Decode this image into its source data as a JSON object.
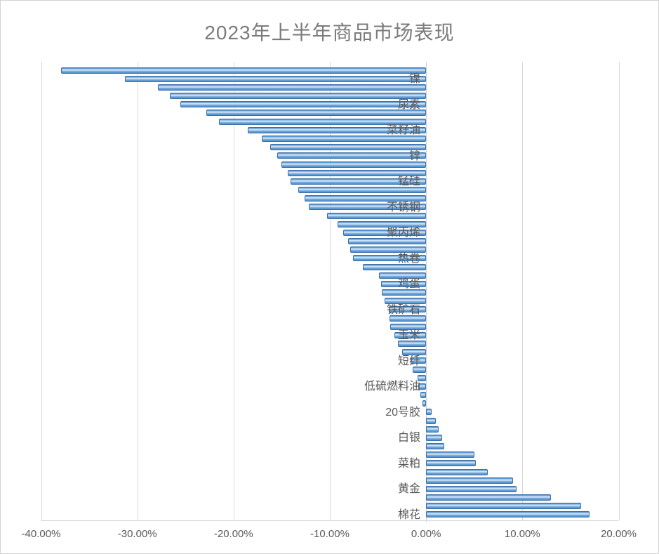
{
  "window": {
    "background_color": "#ffffff",
    "border_color": "#d4d4d4"
  },
  "colors": {
    "bar_fill": "#5b9bd5",
    "bar_border": "#3c6ea6",
    "bar_highlight": "#d6e6f6",
    "gridline": "#d9d9d9",
    "axis_text": "#595959",
    "title_text": "#7b7b7b"
  },
  "chart_data": {
    "type": "bar",
    "orientation": "horizontal",
    "title": "2023年上半年商品市场表现",
    "xlabel": "",
    "ylabel": "",
    "xlim": [
      -40,
      20
    ],
    "grid": true,
    "legend": false,
    "value_unit": "%",
    "x_ticks": [
      {
        "value": -40,
        "label": "-40.00%"
      },
      {
        "value": -30,
        "label": "-30.00%"
      },
      {
        "value": -20,
        "label": "-20.00%"
      },
      {
        "value": -10,
        "label": "-10.00%"
      },
      {
        "value": 0,
        "label": "0.00%"
      },
      {
        "value": 10,
        "label": "10.00%"
      },
      {
        "value": 20,
        "label": "20.00%"
      }
    ],
    "label_note": "category labels shown only on every third bar",
    "bars": [
      {
        "label": "",
        "value": -37.9
      },
      {
        "label": "镍",
        "value": -31.3
      },
      {
        "label": "",
        "value": -27.9
      },
      {
        "label": "",
        "value": -26.6
      },
      {
        "label": "尿素",
        "value": -25.5
      },
      {
        "label": "",
        "value": -22.8
      },
      {
        "label": "",
        "value": -21.5
      },
      {
        "label": "菜籽油",
        "value": -18.5
      },
      {
        "label": "",
        "value": -17.1
      },
      {
        "label": "",
        "value": -16.2
      },
      {
        "label": "锌",
        "value": -15.5
      },
      {
        "label": "",
        "value": -15.0
      },
      {
        "label": "",
        "value": -14.4
      },
      {
        "label": "锰硅",
        "value": -14.1
      },
      {
        "label": "",
        "value": -13.3
      },
      {
        "label": "",
        "value": -12.6
      },
      {
        "label": "不锈钢",
        "value": -12.2
      },
      {
        "label": "",
        "value": -10.3
      },
      {
        "label": "",
        "value": -9.2
      },
      {
        "label": "聚丙烯",
        "value": -8.6
      },
      {
        "label": "",
        "value": -8.1
      },
      {
        "label": "",
        "value": -7.9
      },
      {
        "label": "热卷",
        "value": -7.6
      },
      {
        "label": "",
        "value": -6.6
      },
      {
        "label": "",
        "value": -4.9
      },
      {
        "label": "鸡蛋",
        "value": -4.7
      },
      {
        "label": "",
        "value": -4.6
      },
      {
        "label": "",
        "value": -4.3
      },
      {
        "label": "铁矿石",
        "value": -3.9
      },
      {
        "label": "",
        "value": -3.8
      },
      {
        "label": "",
        "value": -3.7
      },
      {
        "label": "玉米",
        "value": -3.3
      },
      {
        "label": "",
        "value": -2.9
      },
      {
        "label": "",
        "value": -2.5
      },
      {
        "label": "短纤",
        "value": -1.6
      },
      {
        "label": "",
        "value": -1.4
      },
      {
        "label": "",
        "value": -0.9
      },
      {
        "label": "低硫燃料油",
        "value": -0.8
      },
      {
        "label": "",
        "value": -0.6
      },
      {
        "label": "",
        "value": -0.4
      },
      {
        "label": "20号胶",
        "value": 0.6
      },
      {
        "label": "",
        "value": 1.0
      },
      {
        "label": "",
        "value": 1.3
      },
      {
        "label": "白银",
        "value": 1.7
      },
      {
        "label": "",
        "value": 1.9
      },
      {
        "label": "",
        "value": 5.0
      },
      {
        "label": "菜粕",
        "value": 5.2
      },
      {
        "label": "",
        "value": 6.4
      },
      {
        "label": "",
        "value": 9.0
      },
      {
        "label": "黄金",
        "value": 9.4
      },
      {
        "label": "",
        "value": 13.0
      },
      {
        "label": "",
        "value": 16.1
      },
      {
        "label": "棉花",
        "value": 17.0
      }
    ]
  }
}
